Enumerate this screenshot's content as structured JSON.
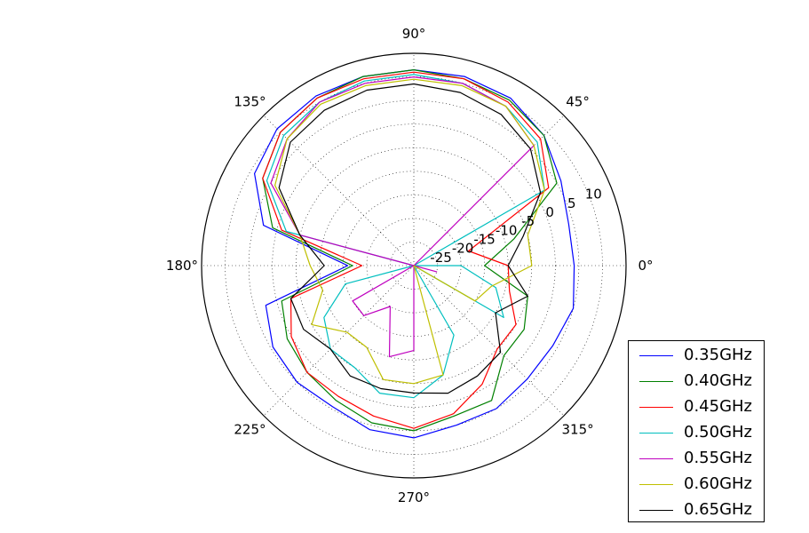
{
  "chart_data": {
    "type": "polar-line",
    "title": "",
    "r_ticks": [
      "-25",
      "-20",
      "-15",
      "-10",
      "-5",
      "0",
      "5",
      "10"
    ],
    "r_tick_values": [
      -25,
      -20,
      -15,
      -10,
      -5,
      0,
      5,
      10
    ],
    "r_range": [
      -30,
      15
    ],
    "theta_ticks": [
      "0°",
      "45°",
      "90°",
      "135°",
      "180°",
      "225°",
      "270°",
      "315°"
    ],
    "theta_tick_values": [
      0,
      45,
      90,
      135,
      180,
      225,
      270,
      315
    ],
    "grid": true,
    "legend_position": "lower-right",
    "theta_samples": [
      0,
      15,
      30,
      45,
      60,
      75,
      90,
      105,
      120,
      135,
      150,
      165,
      180,
      195,
      210,
      225,
      240,
      255,
      270,
      285,
      300,
      315,
      330,
      345
    ],
    "series": [
      {
        "name": "0.35GHz",
        "color": "#0000ff",
        "values": [
          4,
          4,
          6,
          9,
          11,
          11.5,
          11.5,
          11.5,
          11.5,
          11,
          9,
          3,
          -16,
          2.5,
          4.5,
          5,
          4.5,
          6,
          6.5,
          5,
          5,
          4,
          4,
          5
        ]
      },
      {
        "name": "0.40GHz",
        "color": "#008000",
        "values": [
          -15,
          -8,
          5,
          9,
          10.5,
          11,
          11.5,
          11.5,
          11,
          10,
          7,
          1,
          -17,
          -1,
          1,
          2,
          3,
          4.5,
          5,
          3,
          3,
          -3,
          -3,
          -5
        ]
      },
      {
        "name": "0.45GHz",
        "color": "#ff0000",
        "values": [
          -10,
          -18,
          3,
          8,
          10,
          11,
          11,
          11,
          11,
          10,
          7,
          -1,
          -19,
          -3,
          0,
          2,
          2,
          3,
          4.5,
          2.5,
          -1,
          -5,
          -5,
          -9
        ]
      },
      {
        "name": "0.50GHz",
        "color": "#00bfbf",
        "values": [
          -20,
          -30,
          2,
          7,
          9,
          10,
          10.5,
          10.5,
          10,
          9,
          6,
          -2,
          -30,
          -15,
          -8,
          -5,
          -5,
          -2,
          -2,
          -6,
          -13,
          -30,
          -8,
          -12
        ]
      },
      {
        "name": "0.55GHz",
        "color": "#bf00bf",
        "values": [
          -30,
          -30,
          -30,
          6,
          9,
          10,
          10,
          10,
          10,
          8,
          5,
          -5,
          -30,
          -30,
          -15,
          -15,
          -20,
          -10,
          -12,
          -30,
          -30,
          -30,
          -30,
          -25
        ]
      },
      {
        "name": "0.60GHz",
        "color": "#bfbf00",
        "values": [
          -5,
          -5,
          2,
          6,
          9,
          9.5,
          9.5,
          9.5,
          9.5,
          8,
          4,
          -5,
          -8,
          -10,
          -5,
          -10,
          -10,
          -5,
          -5,
          -6,
          -30,
          -30,
          -15,
          -13
        ]
      },
      {
        "name": "0.65GHz",
        "color": "#000000",
        "values": [
          -10,
          -6,
          1,
          5,
          7,
          8,
          8.5,
          8.5,
          8,
          7,
          3,
          -5,
          -11,
          -3,
          -3,
          -5,
          -3,
          -3,
          -3,
          -2,
          -3,
          -4,
          -10,
          -5
        ]
      }
    ]
  }
}
